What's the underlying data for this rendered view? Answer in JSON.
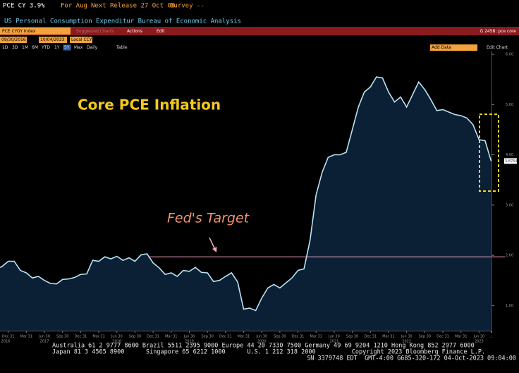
{
  "header": {
    "ticker_line": "PCE CY 3.9%",
    "period": "For Aug",
    "next_release": "Next Release 27 Oct 08",
    "survey": "Survey --",
    "description": "US Personal Consumption Expenditur Bureau of Economic Analysis",
    "security": "PCE CYOY Index",
    "suggested": "Suggested Charts",
    "actions": "Actions",
    "edit": "Edit",
    "chart_id": "G 2458: pce core",
    "start_date": "09/30/2016",
    "end_date": "10/04/2023",
    "currency": "Local CCY",
    "add_data": "Add Data",
    "edit_chart": "Edit Chart",
    "ranges": [
      "1D",
      "3D",
      "1M",
      "6M",
      "YTD",
      "1Y",
      "5Y",
      "Max",
      "Daily",
      "Table"
    ]
  },
  "chart_data": {
    "type": "area",
    "title": "Core PCE Inflation",
    "annotation": "Fed's Target",
    "target_value": 1.97,
    "color": "#b8e2f2",
    "fill": "#0b2035",
    "categories": [
      null,
      null,
      null,
      "Dec 31",
      null,
      null,
      "Mar 31",
      null,
      null,
      "Jun 30",
      null,
      null,
      "Sep 30",
      null,
      null,
      "Dec 31",
      null,
      null,
      "Mar 31",
      null,
      null,
      "Jun 30",
      null,
      null,
      "Sep 30",
      null,
      null,
      "Dec 31",
      null,
      null,
      "Mar 31",
      null,
      null,
      "Jun 30",
      null,
      null,
      "Sep 30",
      null,
      null,
      "Dec 31",
      null,
      null,
      "Mar 31",
      null,
      null,
      "Jun 30",
      null,
      null,
      "Sep 30",
      null,
      null,
      "Dec 31",
      null,
      null,
      "Mar 31",
      null,
      null,
      "Jun 30",
      null,
      null,
      "Sep 30",
      null,
      null,
      "Dec 31",
      null,
      null,
      "Mar 31",
      null,
      null,
      "Jun 30",
      null,
      null,
      "Sep 30",
      null,
      null,
      "Dec 31",
      null,
      null,
      "Mar 31",
      null,
      null,
      "Jun 30",
      null,
      "..."
    ],
    "years": [
      "2016",
      "2017",
      "2018",
      "2019",
      "2020",
      "2021",
      "2022",
      "2023"
    ],
    "values": [
      1.75,
      1.72,
      1.78,
      1.88,
      1.88,
      1.7,
      1.65,
      1.55,
      1.58,
      1.5,
      1.44,
      1.43,
      1.52,
      1.53,
      1.56,
      1.62,
      1.63,
      1.9,
      1.88,
      1.97,
      1.93,
      1.98,
      1.9,
      1.95,
      1.88,
      2.01,
      2.03,
      1.85,
      1.75,
      1.62,
      1.65,
      1.58,
      1.7,
      1.68,
      1.76,
      1.66,
      1.65,
      1.48,
      1.5,
      1.58,
      1.65,
      1.47,
      0.93,
      0.95,
      0.9,
      1.15,
      1.35,
      1.42,
      1.35,
      1.45,
      1.55,
      1.7,
      1.73,
      2.3,
      3.2,
      3.65,
      3.95,
      4.0,
      4.0,
      4.05,
      4.5,
      4.95,
      5.25,
      5.35,
      5.55,
      5.53,
      5.25,
      5.05,
      5.15,
      4.95,
      5.2,
      5.45,
      5.3,
      5.1,
      4.88,
      4.9,
      4.85,
      4.8,
      4.78,
      4.73,
      4.6,
      4.3,
      4.28,
      3.8764
    ],
    "last_label": "3.8764",
    "ylim": [
      0.5,
      6.0
    ],
    "yticks": [
      {
        "value": 1,
        "label": "1.00"
      },
      {
        "value": 2,
        "label": "2.00"
      },
      {
        "value": 3,
        "label": "3.00"
      },
      {
        "value": 4,
        "label": "4.00"
      },
      {
        "value": 5,
        "label": "5.00"
      },
      {
        "value": 6,
        "label": "6.00"
      }
    ]
  },
  "footer": {
    "line1": "Australia 61 2 9777 8600 Brazil 5511 2395 9000 Europe 44 20 7330 7500 Germany 49 69 9204 1210 Hong Kong 852 2977 6000",
    "line2": "Japan 81 3 4565 8900      Singapore 65 6212 1000      U.S. 1 212 318 2000          Copyright 2023 Bloomberg Finance L.P.",
    "line3": "SN 3379748 EDT  GMT-4:00 G685-320-172 04-Oct-2023 09:04:00"
  }
}
